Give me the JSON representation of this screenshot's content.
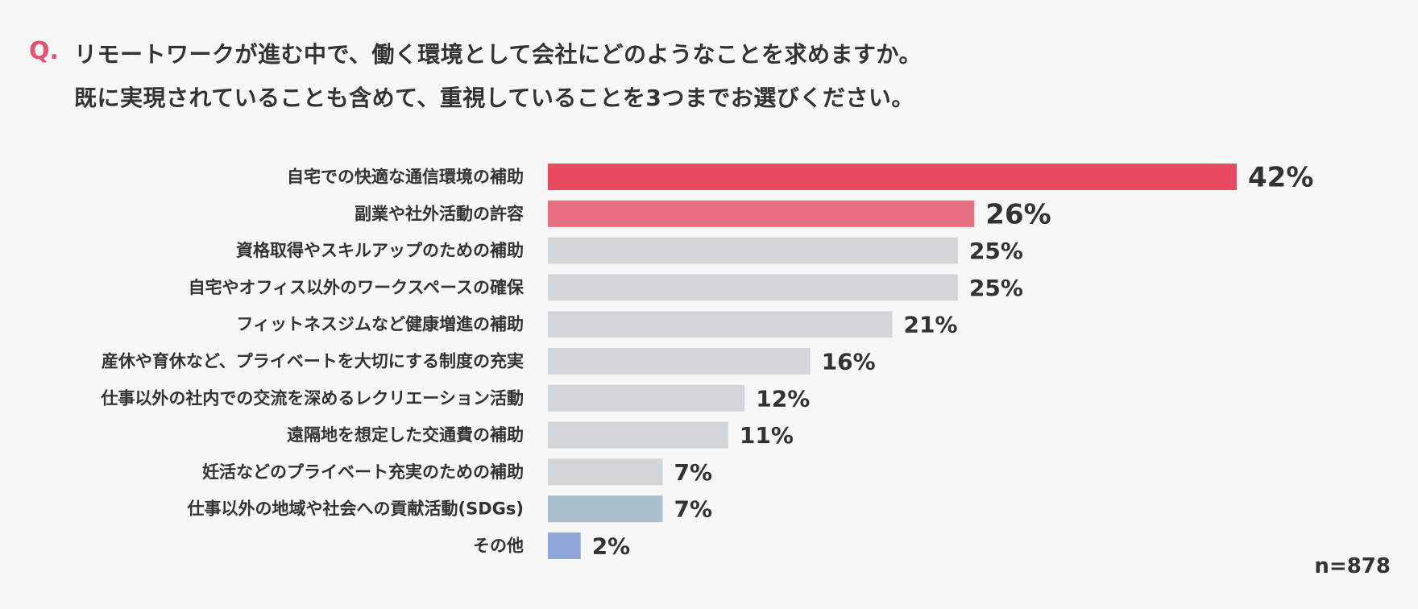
{
  "question": {
    "mark": "Q.",
    "line1": "リモートワークが進む中で、働く環境として会社にどのようなことを求めますか。",
    "line2": "既に実現されていることも含めて、重視していることを3つまでお選びください。"
  },
  "sample_size": "n=878",
  "colors": {
    "background": "#f7f7f7",
    "top1": "#e94a61",
    "top2": "#e66e82",
    "default": "#d3d6d9",
    "sdgs": "#a9c0cc",
    "other": "#8fa8d9",
    "text": "#333333",
    "accent": "#e05470"
  },
  "chart_data": {
    "type": "bar",
    "orientation": "horizontal",
    "title": "",
    "xlabel": "",
    "ylabel": "",
    "xlim": [
      0,
      42
    ],
    "grid": false,
    "value_suffix": "%",
    "categories": [
      "自宅での快適な通信環境の補助",
      "副業や社外活動の許容",
      "資格取得やスキルアップのための補助",
      "自宅やオフィス以外のワークスペースの確保",
      "フィットネスジムなど健康増進の補助",
      "産休や育休など、プライベートを大切にする制度の充実",
      "仕事以外の社内での交流を深めるレクリエーション活動",
      "遠隔地を想定した交通費の補助",
      "妊活などのプライベート充実のための補助",
      "仕事以外の地域や社会への貢献活動(SDGs)",
      "その他"
    ],
    "values": [
      42,
      26,
      25,
      25,
      21,
      16,
      12,
      11,
      7,
      7,
      2
    ],
    "bar_colors": [
      "top1",
      "top2",
      "default",
      "default",
      "default",
      "default",
      "default",
      "default",
      "default",
      "sdgs",
      "other"
    ],
    "emphasized": [
      true,
      true,
      false,
      false,
      false,
      false,
      false,
      false,
      false,
      false,
      false
    ]
  }
}
